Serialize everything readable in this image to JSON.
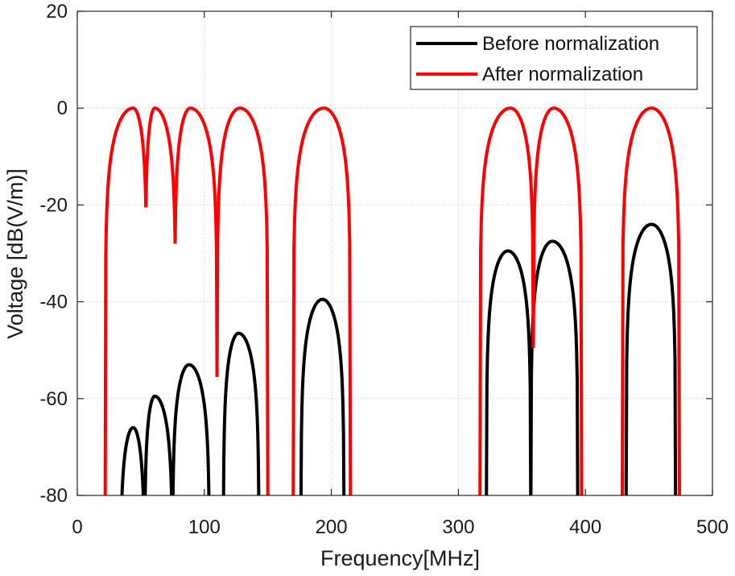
{
  "chart_data": {
    "type": "line",
    "title": "",
    "xlabel": "Frequency[MHz]",
    "ylabel": "Voltage [dB(V/m)]",
    "xlim": [
      0,
      500
    ],
    "ylim": [
      -80,
      20
    ],
    "xticks": [
      0,
      100,
      200,
      300,
      400,
      500
    ],
    "yticks": [
      -80,
      -60,
      -40,
      -20,
      0,
      20
    ],
    "xtick_labels": [
      "0",
      "100",
      "200",
      "300",
      "400",
      "500"
    ],
    "ytick_labels": [
      "-80",
      "-60",
      "-40",
      "-20",
      "0",
      "20"
    ],
    "grid": true,
    "legend_position": "top-right",
    "series": [
      {
        "name": "Before normalization",
        "color": "#000000",
        "lobes": [
          {
            "x_start": 34,
            "x_end": 53,
            "peak_x": 44,
            "peak_y": -66
          },
          {
            "x_start": 53,
            "x_end": 75,
            "peak_x": 61,
            "peak_y": -59.5
          },
          {
            "x_start": 75,
            "x_end": 104,
            "peak_x": 88,
            "peak_y": -53
          },
          {
            "x_start": 115,
            "x_end": 143,
            "peak_x": 127,
            "peak_y": -46.5
          },
          {
            "x_start": 176,
            "x_end": 210,
            "peak_x": 193,
            "peak_y": -39.5
          },
          {
            "x_start": 322,
            "x_end": 357,
            "peak_x": 339,
            "peak_y": -29.5
          },
          {
            "x_start": 357,
            "x_end": 394,
            "peak_x": 374,
            "peak_y": -27.5
          },
          {
            "x_start": 432,
            "x_end": 471,
            "peak_x": 452,
            "peak_y": -24
          }
        ]
      },
      {
        "name": "After normalization",
        "color": "#ff0000",
        "lobes": [
          {
            "x_start": 22,
            "x_end": 54,
            "peak_x": 44,
            "peak_y": 0,
            "start_y": -80,
            "end_y": -20.5
          },
          {
            "x_start": 54,
            "x_end": 77,
            "peak_x": 61,
            "peak_y": 0,
            "start_y": -20.5,
            "end_y": -28
          },
          {
            "x_start": 77,
            "x_end": 110,
            "peak_x": 89,
            "peak_y": 0,
            "start_y": -28,
            "end_y": -55.5
          },
          {
            "x_start": 110,
            "x_end": 150,
            "peak_x": 128,
            "peak_y": 0,
            "start_y": -55.5,
            "end_y": -80
          },
          {
            "x_start": 170,
            "x_end": 215,
            "peak_x": 194,
            "peak_y": 0,
            "start_y": -80,
            "end_y": -80
          },
          {
            "x_start": 317,
            "x_end": 359,
            "peak_x": 341,
            "peak_y": 0,
            "start_y": -80,
            "end_y": -49.5
          },
          {
            "x_start": 359,
            "x_end": 397,
            "peak_x": 375,
            "peak_y": 0,
            "start_y": -49.5,
            "end_y": -80
          },
          {
            "x_start": 429,
            "x_end": 474,
            "peak_x": 452,
            "peak_y": 0,
            "start_y": -80,
            "end_y": -80
          }
        ]
      }
    ]
  }
}
